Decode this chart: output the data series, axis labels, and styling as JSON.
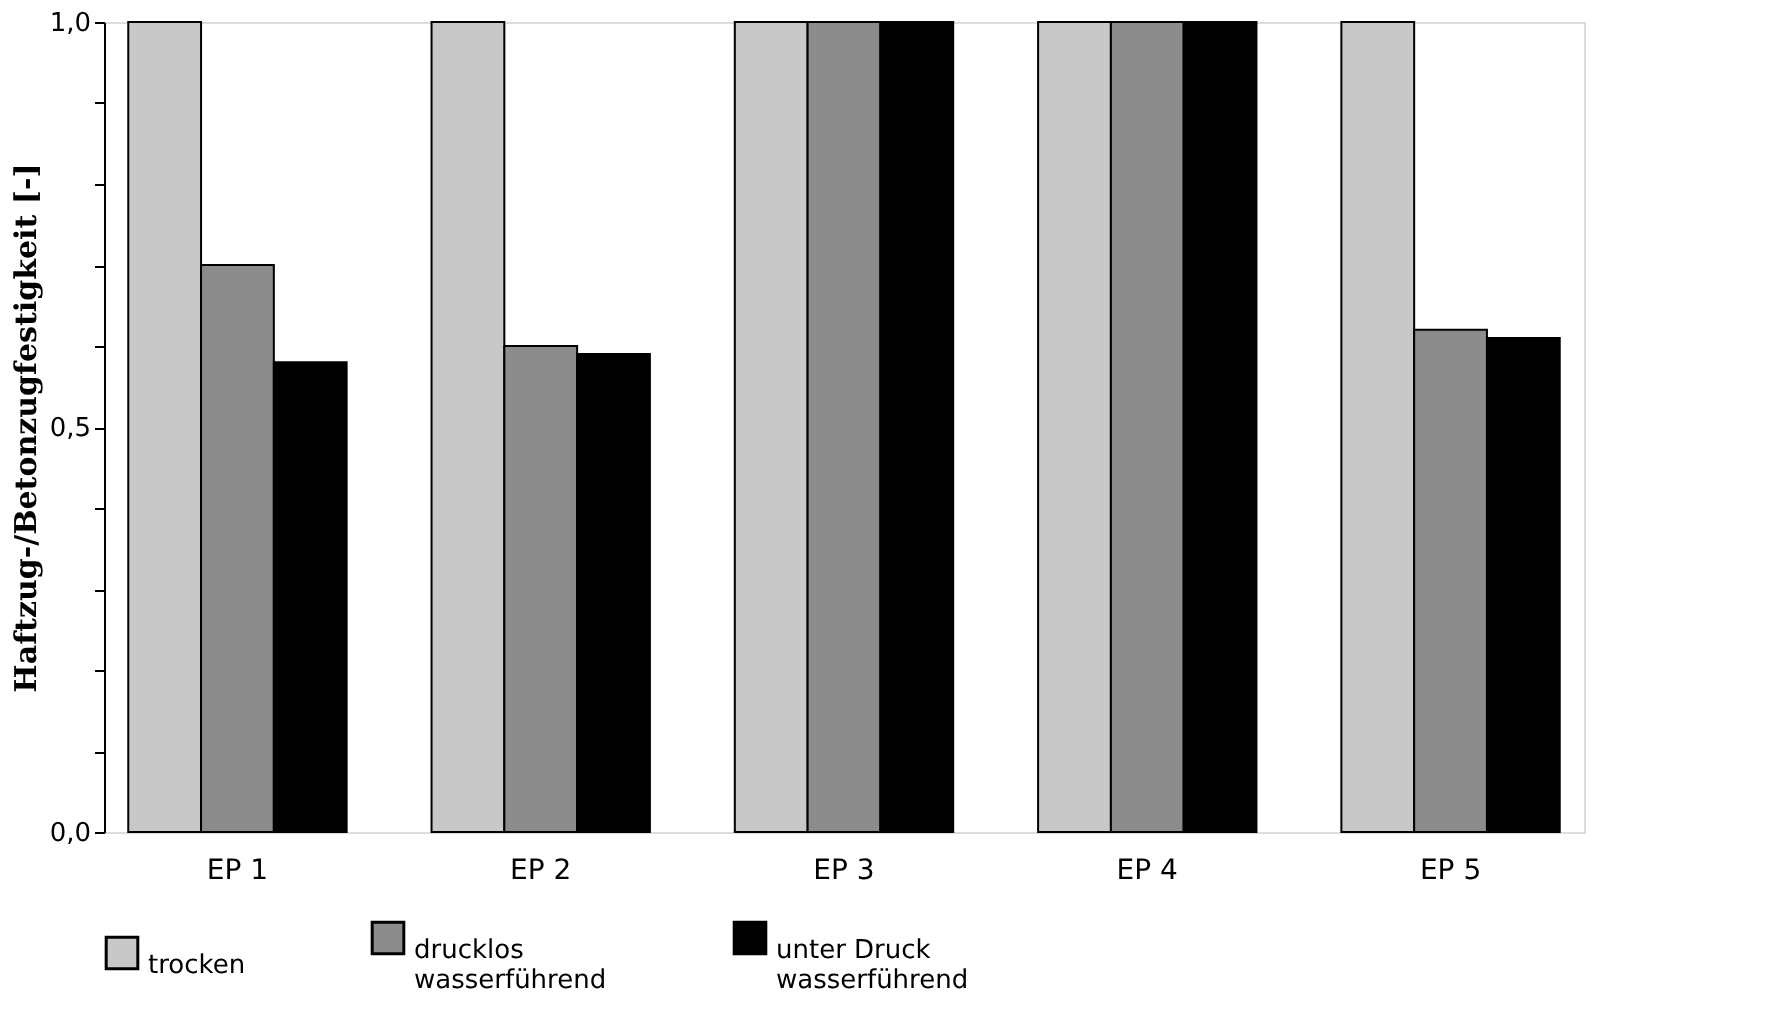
{
  "chart_data": {
    "type": "bar",
    "ylabel": "Haftzug-/Betonzugfestigkeit [-]",
    "categories": [
      "EP 1",
      "EP 2",
      "EP 3",
      "EP 4",
      "EP 5"
    ],
    "series": [
      {
        "name": "trocken",
        "color": "#c8c8c8",
        "values": [
          1.0,
          1.0,
          1.0,
          1.0,
          1.0
        ]
      },
      {
        "name": "drucklos\nwasserführend",
        "color": "#8c8c8c",
        "values": [
          0.7,
          0.6,
          1.0,
          1.0,
          0.62
        ]
      },
      {
        "name": "unter Druck\nwasserführend",
        "color": "#000000",
        "values": [
          0.58,
          0.59,
          1.0,
          1.0,
          0.61
        ]
      }
    ],
    "ylim": [
      0,
      1.0
    ],
    "yticks": [
      {
        "value": 0,
        "label": "0,0"
      },
      {
        "value": 0.1,
        "label": null
      },
      {
        "value": 0.2,
        "label": null
      },
      {
        "value": 0.3,
        "label": null
      },
      {
        "value": 0.4,
        "label": null
      },
      {
        "value": 0.5,
        "label": "0,5"
      },
      {
        "value": 0.6,
        "label": null
      },
      {
        "value": 0.7,
        "label": null
      },
      {
        "value": 0.8,
        "label": null
      },
      {
        "value": 0.9,
        "label": null
      },
      {
        "value": 1.0,
        "label": "1,0"
      }
    ],
    "grid": false,
    "legend": "bottom"
  }
}
